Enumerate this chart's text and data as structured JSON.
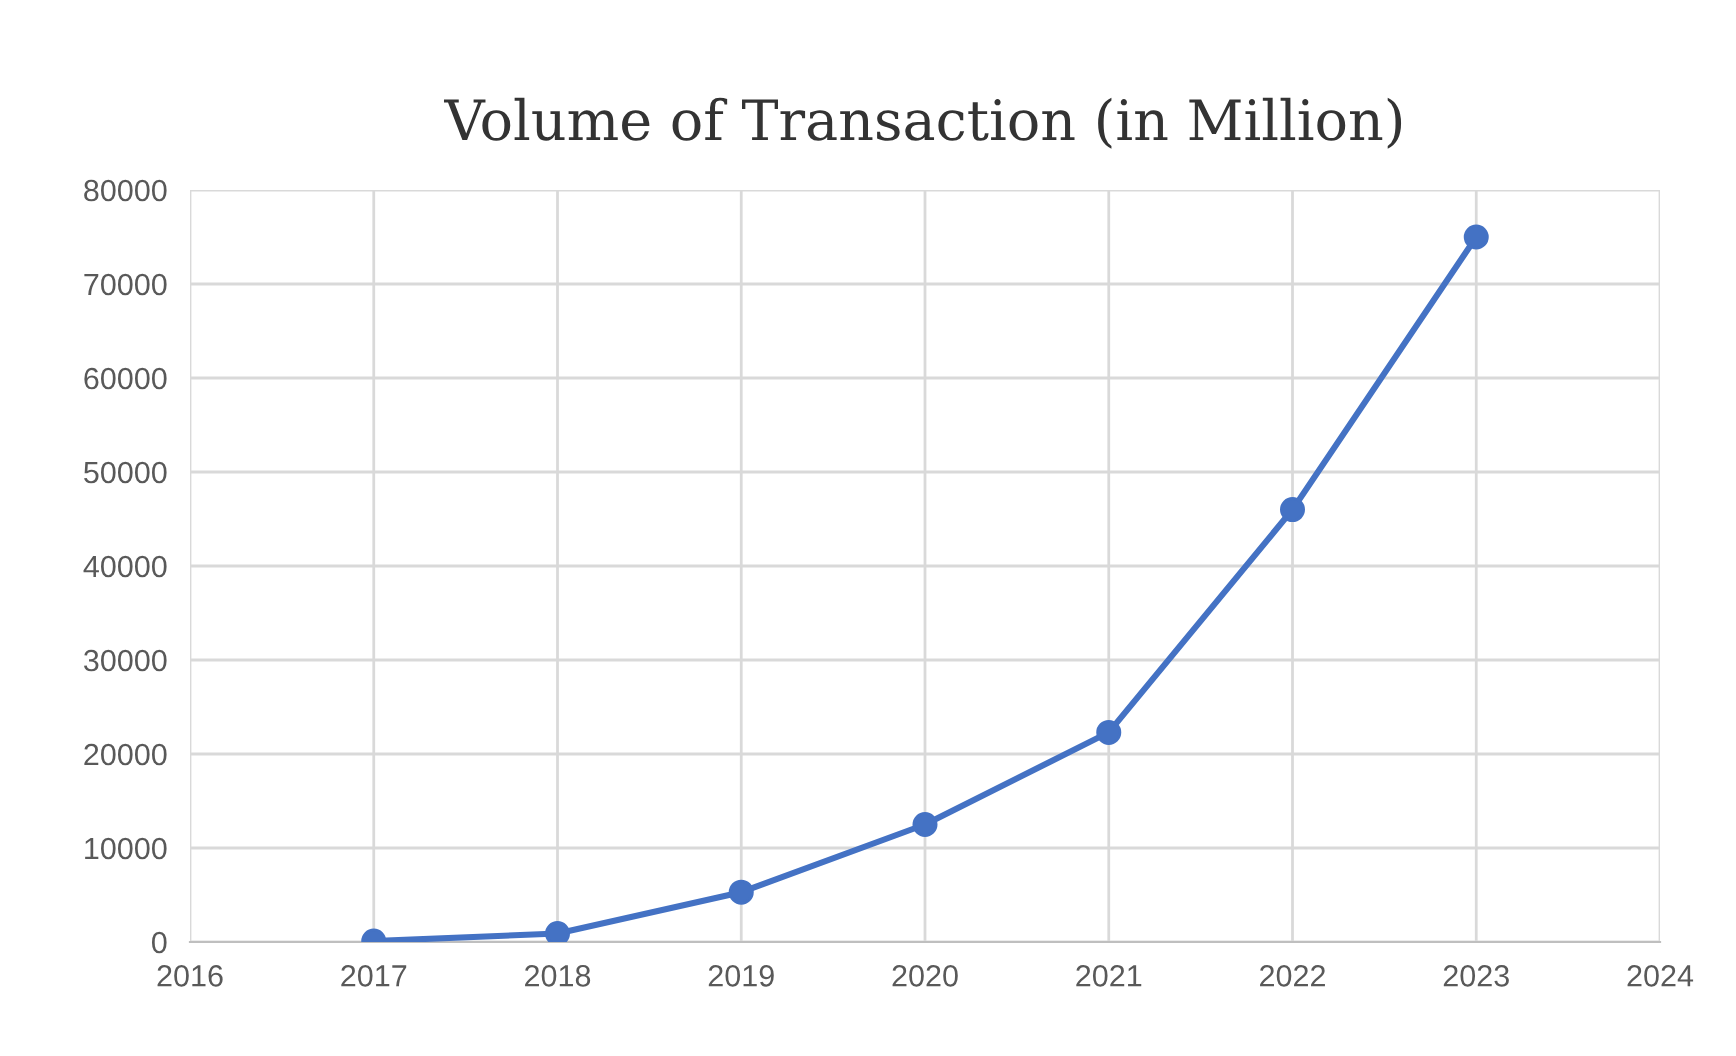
{
  "chart_data": {
    "type": "line",
    "title": "Volume of Transaction (in Million)",
    "x": [
      2017,
      2018,
      2019,
      2020,
      2021,
      2022,
      2023
    ],
    "series": [
      {
        "color": "#4472c4",
        "values": [
          100,
          900,
          5300,
          12500,
          22300,
          46000,
          75000
        ]
      }
    ],
    "xlim": [
      2016,
      2024
    ],
    "xticks": [
      2016,
      2017,
      2018,
      2019,
      2020,
      2021,
      2022,
      2023,
      2024
    ],
    "ylim": [
      0,
      80000
    ],
    "yticks": [
      0,
      10000,
      20000,
      30000,
      40000,
      50000,
      60000,
      70000,
      80000
    ],
    "grid": true,
    "marker": "circle",
    "line_style": "solid"
  }
}
